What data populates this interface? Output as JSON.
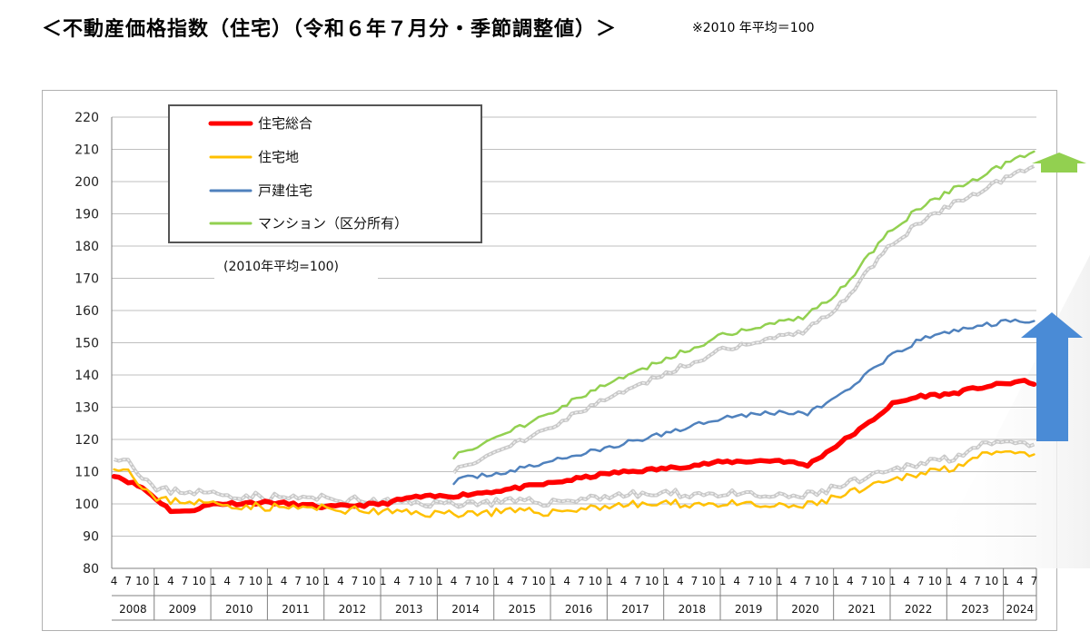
{
  "header": {
    "title": "＜不動産価格指数（住宅）（令和６年７月分・季節調整値）＞",
    "note": "※2010 年平均＝100"
  },
  "chart_data": {
    "type": "line",
    "ylim": [
      80,
      220
    ],
    "yticks": [
      80,
      90,
      100,
      110,
      120,
      130,
      140,
      150,
      160,
      170,
      180,
      190,
      200,
      210,
      220
    ],
    "grid": true,
    "legend_position": "top-left",
    "base_note": "(2010年平均=100)",
    "x_start": "2008-04",
    "x_end": "2024-07",
    "month_tick_labels": [
      "4",
      "7",
      "10",
      "1"
    ],
    "years": [
      "2008",
      "2009",
      "2010",
      "2011",
      "2012",
      "2013",
      "2014",
      "2015",
      "2016",
      "2017",
      "2018",
      "2019",
      "2020",
      "2021",
      "2022",
      "2023",
      "2024"
    ],
    "series": [
      {
        "name": "住宅総合",
        "color": "#ff0000",
        "start": "2008-04",
        "anchors": [
          [
            "2008-04",
            109
          ],
          [
            "2008-10",
            105
          ],
          [
            "2009-04",
            98
          ],
          [
            "2009-07",
            97.5
          ],
          [
            "2010-01",
            100
          ],
          [
            "2011-01",
            100.5
          ],
          [
            "2012-01",
            99
          ],
          [
            "2013-01",
            100
          ],
          [
            "2013-07",
            102
          ],
          [
            "2014-04",
            102.5
          ],
          [
            "2015-01",
            104
          ],
          [
            "2016-01",
            106.5
          ],
          [
            "2017-01",
            109.5
          ],
          [
            "2018-01",
            111
          ],
          [
            "2019-01",
            113
          ],
          [
            "2020-01",
            113.5
          ],
          [
            "2020-07",
            112
          ],
          [
            "2021-01",
            118
          ],
          [
            "2021-07",
            124
          ],
          [
            "2022-01",
            131
          ],
          [
            "2022-07",
            133.5
          ],
          [
            "2023-01",
            134
          ],
          [
            "2023-07",
            136
          ],
          [
            "2024-04",
            138
          ],
          [
            "2024-07",
            137.5
          ]
        ]
      },
      {
        "name": "住宅地",
        "color": "#ffc000",
        "start": "2008-04",
        "anchors": [
          [
            "2008-04",
            112
          ],
          [
            "2008-07",
            110.5
          ],
          [
            "2009-01",
            101
          ],
          [
            "2009-07",
            101
          ],
          [
            "2010-01",
            100
          ],
          [
            "2011-01",
            99
          ],
          [
            "2012-01",
            98.5
          ],
          [
            "2013-01",
            97.5
          ],
          [
            "2014-01",
            97
          ],
          [
            "2015-01",
            97.5
          ],
          [
            "2016-01",
            97.5
          ],
          [
            "2017-01",
            99.5
          ],
          [
            "2018-01",
            100
          ],
          [
            "2019-01",
            100
          ],
          [
            "2020-01",
            99
          ],
          [
            "2020-07",
            99.5
          ],
          [
            "2021-01",
            102
          ],
          [
            "2021-07",
            104.5
          ],
          [
            "2022-01",
            107
          ],
          [
            "2022-07",
            110
          ],
          [
            "2023-01",
            111
          ],
          [
            "2023-04",
            113
          ],
          [
            "2023-07",
            114.5
          ],
          [
            "2024-01",
            115.5
          ],
          [
            "2024-07",
            115
          ]
        ]
      },
      {
        "name": "戸建住宅",
        "color": "#4f81bd",
        "start": "2014-04",
        "anchors": [
          [
            "2014-04",
            107
          ],
          [
            "2014-10",
            109
          ],
          [
            "2015-04",
            110
          ],
          [
            "2016-01",
            113.5
          ],
          [
            "2017-01",
            117.5
          ],
          [
            "2018-01",
            122
          ],
          [
            "2018-07",
            124.5
          ],
          [
            "2019-01",
            127
          ],
          [
            "2020-01",
            128.5
          ],
          [
            "2020-07",
            128
          ],
          [
            "2021-01",
            133
          ],
          [
            "2021-07",
            139.5
          ],
          [
            "2022-01",
            146
          ],
          [
            "2022-07",
            151
          ],
          [
            "2023-01",
            153.5
          ],
          [
            "2023-07",
            155
          ],
          [
            "2024-01",
            156.5
          ],
          [
            "2024-07",
            157
          ]
        ]
      },
      {
        "name": "マンション（区分所有）",
        "color": "#92d050",
        "start": "2014-04",
        "anchors": [
          [
            "2014-04",
            115
          ],
          [
            "2015-01",
            120.5
          ],
          [
            "2016-01",
            129
          ],
          [
            "2017-01",
            137.5
          ],
          [
            "2018-01",
            145
          ],
          [
            "2019-01",
            152.5
          ],
          [
            "2020-01",
            156.5
          ],
          [
            "2020-07",
            158.5
          ],
          [
            "2021-01",
            165
          ],
          [
            "2021-07",
            175
          ],
          [
            "2022-01",
            185.5
          ],
          [
            "2022-07",
            192
          ],
          [
            "2023-01",
            197
          ],
          [
            "2023-07",
            201
          ],
          [
            "2024-01",
            205.5
          ],
          [
            "2024-07",
            210
          ]
        ]
      }
    ],
    "arrows": [
      {
        "direction": "up",
        "color": "#92d050",
        "label_series": "マンション（区分所有）"
      },
      {
        "direction": "up",
        "color": "#4a8bd6",
        "label_series": "戸建住宅"
      }
    ]
  }
}
